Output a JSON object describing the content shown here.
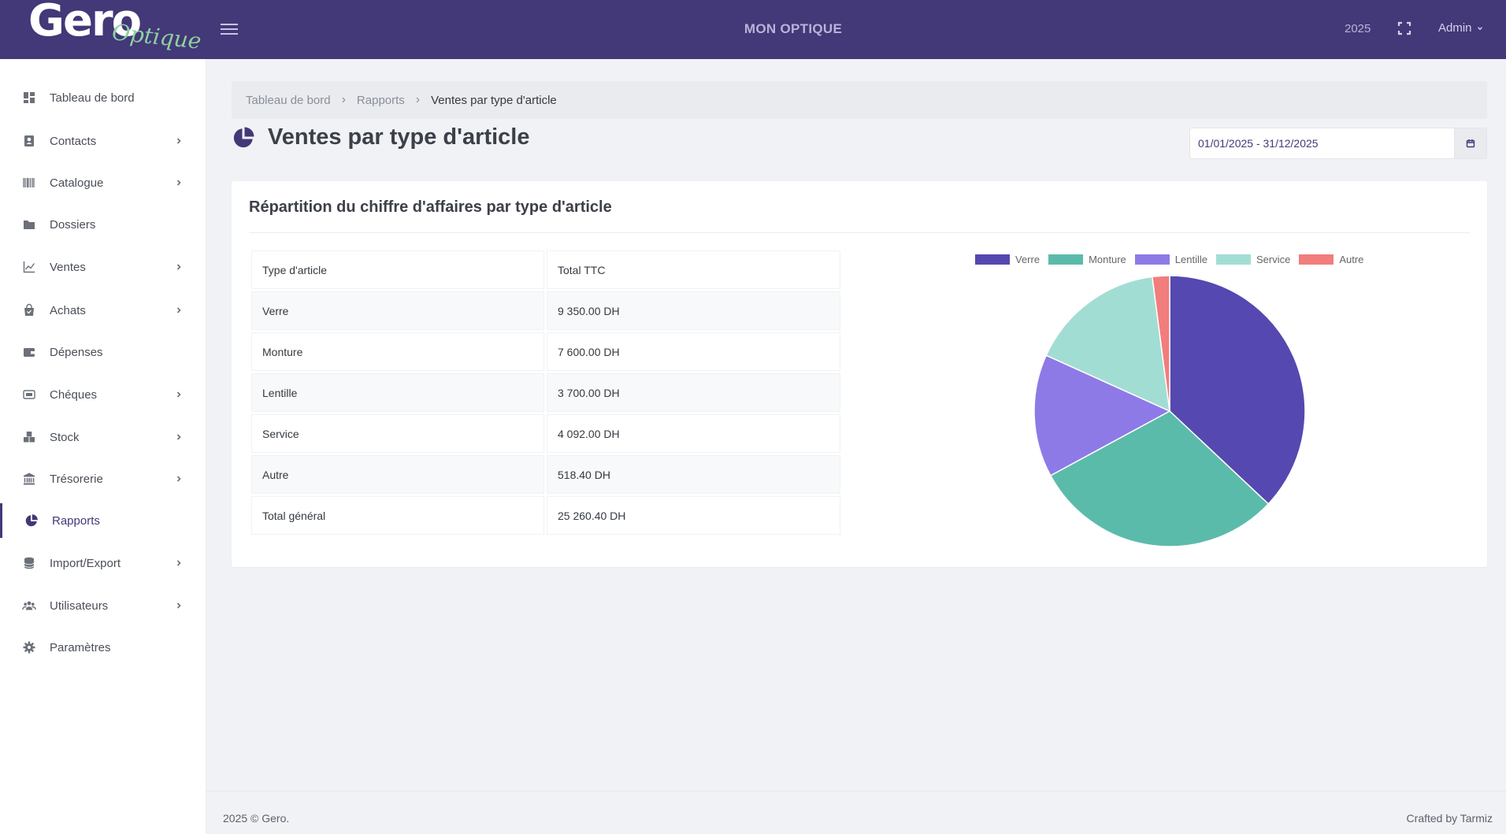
{
  "brand": {
    "name": "Gero",
    "sub": "Optique"
  },
  "header": {
    "app_title": "MON OPTIQUE",
    "year": "2025",
    "user": "Admin"
  },
  "sidebar": {
    "items": [
      {
        "label": "Tableau de bord",
        "icon": "dashboard-icon",
        "has_submenu": false,
        "active": false
      },
      {
        "label": "Contacts",
        "icon": "contacts-icon",
        "has_submenu": true,
        "active": false
      },
      {
        "label": "Catalogue",
        "icon": "barcode-icon",
        "has_submenu": true,
        "active": false
      },
      {
        "label": "Dossiers",
        "icon": "folder-icon",
        "has_submenu": false,
        "active": false
      },
      {
        "label": "Ventes",
        "icon": "line-chart-icon",
        "has_submenu": true,
        "active": false
      },
      {
        "label": "Achats",
        "icon": "shopping-bag-icon",
        "has_submenu": true,
        "active": false
      },
      {
        "label": "Dépenses",
        "icon": "wallet-icon",
        "has_submenu": false,
        "active": false
      },
      {
        "label": "Chéques",
        "icon": "cheque-icon",
        "has_submenu": true,
        "active": false
      },
      {
        "label": "Stock",
        "icon": "boxes-icon",
        "has_submenu": true,
        "active": false
      },
      {
        "label": "Trésorerie",
        "icon": "bank-icon",
        "has_submenu": true,
        "active": false
      },
      {
        "label": "Rapports",
        "icon": "pie-chart-icon",
        "has_submenu": false,
        "active": true
      },
      {
        "label": "Import/Export",
        "icon": "database-icon",
        "has_submenu": true,
        "active": false
      },
      {
        "label": "Utilisateurs",
        "icon": "users-icon",
        "has_submenu": true,
        "active": false
      },
      {
        "label": "Paramètres",
        "icon": "gear-icon",
        "has_submenu": false,
        "active": false
      }
    ]
  },
  "breadcrumb": {
    "home": "Tableau de bord",
    "section": "Rapports",
    "current": "Ventes par type d'article"
  },
  "page": {
    "title": "Ventes par type d'article",
    "date_range": "01/01/2025 - 31/12/2025"
  },
  "card": {
    "title": "Répartition du chiffre d'affaires par type d'article",
    "table": {
      "headers": [
        "Type d'article",
        "Total TTC"
      ],
      "rows": [
        [
          "Verre",
          "9 350.00 DH"
        ],
        [
          "Monture",
          "7 600.00 DH"
        ],
        [
          "Lentille",
          "3 700.00 DH"
        ],
        [
          "Service",
          "4 092.00 DH"
        ],
        [
          "Autre",
          "518.40 DH"
        ],
        [
          "Total général",
          "25 260.40 DH"
        ]
      ]
    }
  },
  "chart_data": {
    "type": "pie",
    "title": "",
    "legend_position": "top",
    "categories": [
      "Verre",
      "Monture",
      "Lentille",
      "Service",
      "Autre"
    ],
    "values": [
      9350.0,
      7600.0,
      3700.0,
      4092.0,
      518.4
    ],
    "colors": [
      "#5548b0",
      "#5bbbab",
      "#8e7ae6",
      "#a2ddd3",
      "#f17d7d"
    ]
  },
  "footer": {
    "left": "2025 © Gero.",
    "right": "Crafted by Tarmiz"
  },
  "colors": {
    "topbar": "#433878",
    "accent": "#433878",
    "background": "#f1f2f6"
  }
}
